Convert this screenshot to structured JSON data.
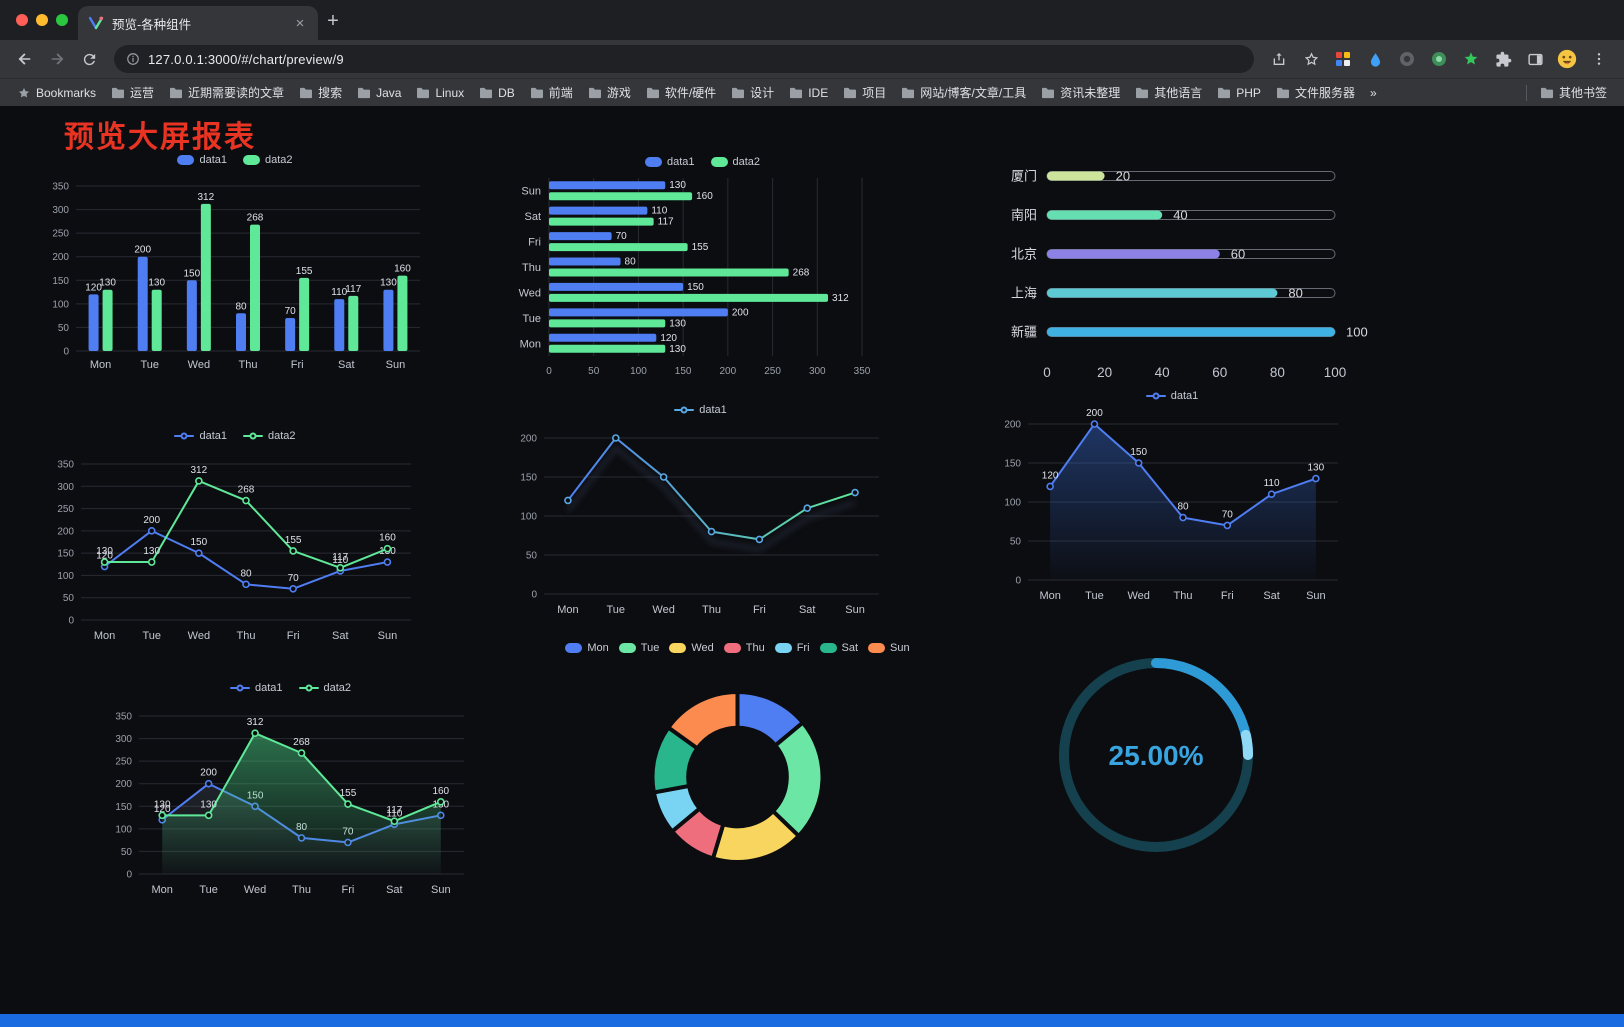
{
  "browser": {
    "window_controls": [
      "close",
      "minimize",
      "zoom"
    ],
    "tab": {
      "title": "预览-各种组件",
      "close": "×"
    },
    "new_tab_button": "+",
    "address": {
      "url": "127.0.0.1:3000/#/chart/preview/9"
    },
    "toolbar_icon_names": [
      "back-icon",
      "forward-icon",
      "reload-icon",
      "site-info-icon",
      "share-icon",
      "bookmark-star-icon",
      "extension-grid-icon",
      "extension-drop-icon",
      "extension-circle-icon",
      "extension-green-icon",
      "extension-star-icon",
      "extensions-puzzle-icon",
      "sidebar-icon",
      "profile-avatar",
      "menu-kebab-icon"
    ],
    "bookmarks_bar": {
      "manager_label": "Bookmarks",
      "folders": [
        "运营",
        "近期需要读的文章",
        "搜索",
        "Java",
        "Linux",
        "DB",
        "前端",
        "游戏",
        "软件/硬件",
        "设计",
        "IDE",
        "项目",
        "网站/博客/文章/工具",
        "资讯未整理",
        "其他语言",
        "PHP",
        "文件服务器"
      ],
      "overflow": "»",
      "other_bookmarks": "其他书签"
    }
  },
  "page": {
    "title": "预览大屏报表",
    "title_color": "#e93323",
    "background": "#0c0d11",
    "bottom_accent_color": "#1a6be0"
  },
  "chart_data": [
    {
      "type": "bar",
      "categories": [
        "Mon",
        "Tue",
        "Wed",
        "Thu",
        "Fri",
        "Sat",
        "Sun"
      ],
      "series": [
        {
          "name": "data1",
          "color": "#4f7df2",
          "values": [
            120,
            200,
            150,
            80,
            70,
            110,
            130
          ]
        },
        {
          "name": "data2",
          "color": "#5fe898",
          "values": [
            130,
            130,
            312,
            268,
            155,
            117,
            160
          ]
        }
      ],
      "ylim": [
        0,
        350
      ],
      "ystep": 50,
      "grid": true,
      "legend_position": "top",
      "value_labels": true
    },
    {
      "type": "hbar",
      "categories": [
        "Mon",
        "Tue",
        "Wed",
        "Thu",
        "Fri",
        "Sat",
        "Sun"
      ],
      "categories_display_order": "Sun-top to Mon-bottom",
      "series": [
        {
          "name": "data1",
          "color": "#4f7df2",
          "values": [
            120,
            200,
            150,
            80,
            70,
            110,
            130
          ]
        },
        {
          "name": "data2",
          "color": "#5fe898",
          "values": [
            130,
            130,
            312,
            268,
            155,
            117,
            160
          ]
        }
      ],
      "xlim": [
        0,
        350
      ],
      "xstep": 50,
      "grid": true,
      "legend_position": "top",
      "value_labels": true
    },
    {
      "type": "progress",
      "items": [
        {
          "label": "厦门",
          "value": 20,
          "color": "#cde59b"
        },
        {
          "label": "南阳",
          "value": 40,
          "color": "#65dfb2"
        },
        {
          "label": "北京",
          "value": 60,
          "color": "#8c82e6"
        },
        {
          "label": "上海",
          "value": 80,
          "color": "#5cc9d4"
        },
        {
          "label": "新疆",
          "value": 100,
          "color": "#3fb1e3"
        }
      ],
      "xlim": [
        0,
        100
      ],
      "xticks": [
        0,
        20,
        40,
        60,
        80,
        100
      ]
    },
    {
      "type": "line",
      "categories": [
        "Mon",
        "Tue",
        "Wed",
        "Thu",
        "Fri",
        "Sat",
        "Sun"
      ],
      "series": [
        {
          "name": "data1",
          "color": "#4f7df2",
          "values": [
            120,
            200,
            150,
            80,
            70,
            110,
            130
          ]
        },
        {
          "name": "data2",
          "color": "#5fe898",
          "values": [
            130,
            130,
            312,
            268,
            155,
            117,
            160
          ]
        }
      ],
      "ylim": [
        0,
        350
      ],
      "ystep": 50,
      "grid": true,
      "legend_position": "top",
      "value_labels": true
    },
    {
      "type": "line",
      "categories": [
        "Mon",
        "Tue",
        "Wed",
        "Thu",
        "Fri",
        "Sat",
        "Sun"
      ],
      "series": [
        {
          "name": "data1",
          "color": "#58a8e6",
          "gradient": [
            "#4f7df2",
            "#5fe898"
          ],
          "shadow": true,
          "values": [
            120,
            200,
            150,
            80,
            70,
            110,
            130
          ]
        }
      ],
      "ylim": [
        0,
        200
      ],
      "ystep": 50,
      "grid": true,
      "legend_position": "top",
      "value_labels": false
    },
    {
      "type": "line",
      "categories": [
        "Mon",
        "Tue",
        "Wed",
        "Thu",
        "Fri",
        "Sat",
        "Sun"
      ],
      "series": [
        {
          "name": "data1",
          "color": "#4f7df2",
          "area": "#3567c9",
          "area_opacity": 0.45,
          "values": [
            120,
            200,
            150,
            80,
            70,
            110,
            130
          ]
        }
      ],
      "ylim": [
        0,
        200
      ],
      "ystep": 50,
      "grid": true,
      "legend_position": "top",
      "value_labels": true
    },
    {
      "type": "line",
      "categories": [
        "Mon",
        "Tue",
        "Wed",
        "Thu",
        "Fri",
        "Sat",
        "Sun"
      ],
      "series": [
        {
          "name": "data1",
          "color": "#4f7df2",
          "area": "#7e899e",
          "area_opacity": 0.18,
          "values": [
            120,
            200,
            150,
            80,
            70,
            110,
            130
          ]
        },
        {
          "name": "data2",
          "color": "#5fe898",
          "area": "#4ad486",
          "area_opacity": 0.5,
          "values": [
            130,
            130,
            312,
            268,
            155,
            117,
            160
          ]
        }
      ],
      "ylim": [
        0,
        350
      ],
      "ystep": 50,
      "grid": true,
      "legend_position": "top",
      "value_labels": true
    },
    {
      "type": "pie",
      "donut": true,
      "categories": [
        "Mon",
        "Tue",
        "Wed",
        "Thu",
        "Fri",
        "Sat",
        "Sun"
      ],
      "values": [
        120,
        200,
        150,
        80,
        70,
        110,
        130
      ],
      "colors": [
        "#4f7df2",
        "#6be6a4",
        "#f8d55e",
        "#ef6e7d",
        "#79d3f2",
        "#29b68c",
        "#fb8b4e"
      ],
      "legend_position": "top"
    },
    {
      "type": "gauge",
      "value": 25,
      "label": "25.00%",
      "color": "#2f9bd6",
      "tip_color": "#8fd9f5",
      "track_color": "#15414e",
      "text_color": "#38a5e0"
    }
  ]
}
